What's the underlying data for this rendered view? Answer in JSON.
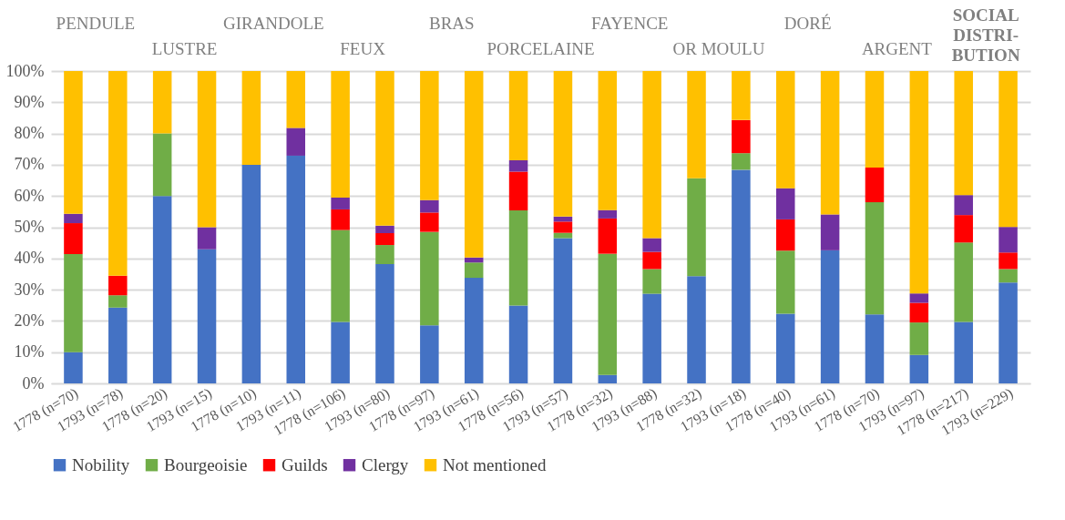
{
  "chart_data": {
    "type": "bar",
    "stacked": true,
    "categories": [
      "1778 (n=70)",
      "1793 (n=78)",
      "1778 (n=20)",
      "1793 (n=15)",
      "1778 (n=10)",
      "1793 (n=11)",
      "1778 (n=106)",
      "1793 (n=80)",
      "1778 (n=97)",
      "1793 (n=61)",
      "1778 (n=56)",
      "1793 (n=57)",
      "1778 (n=32)",
      "1793 (n=88)",
      "1778 (n=32)",
      "1793 (n=18)",
      "1778  (n=40)",
      "1793  (n=61)",
      "1778 (n=70)",
      "1793 (n=97)",
      "1778 (n=217)",
      "1793 (n=229)"
    ],
    "series": [
      {
        "name": "Nobility",
        "color": "#4472c4",
        "values": [
          10,
          24.3,
          60,
          42.9,
          70,
          72.9,
          19.7,
          38.2,
          18.6,
          33.8,
          24.9,
          46.5,
          2.7,
          28.7,
          34.3,
          68.4,
          22.3,
          42.6,
          22.1,
          9.1,
          19.7,
          32.3
        ]
      },
      {
        "name": "Bourgeoisie",
        "color": "#70ad47",
        "values": [
          31.4,
          3.9,
          20,
          0,
          0,
          0,
          29.4,
          6.1,
          29.9,
          4.9,
          30.5,
          1.7,
          38.8,
          7.9,
          31.4,
          5.3,
          20.2,
          0,
          35.9,
          10.4,
          25.4,
          4.3
        ]
      },
      {
        "name": "Guilds",
        "color": "#ff0000",
        "values": [
          9.9,
          6.3,
          0,
          0,
          0,
          0,
          6.6,
          3.8,
          6.2,
          0,
          12.4,
          3.6,
          11.3,
          5.5,
          0,
          10.6,
          10,
          0,
          11.1,
          6.3,
          8.8,
          5.3
        ]
      },
      {
        "name": "Clergy",
        "color": "#7030a0",
        "values": [
          3,
          0,
          0,
          7.1,
          0,
          8.9,
          3.8,
          2.4,
          4,
          1.6,
          3.6,
          1.6,
          2.7,
          4.4,
          0,
          0,
          10,
          11.5,
          0,
          3,
          6.4,
          8.2
        ]
      },
      {
        "name": "Not mentioned",
        "color": "#ffc000",
        "values": [
          45.7,
          65.5,
          20,
          50,
          30,
          18.2,
          40.5,
          49.5,
          41.3,
          59.7,
          28.6,
          46.6,
          44.5,
          53.5,
          34.3,
          15.7,
          37.5,
          45.9,
          30.9,
          71.2,
          39.7,
          49.9
        ]
      }
    ],
    "ylim": [
      0,
      100
    ],
    "yticks": [
      {
        "value": 0,
        "label": "0%"
      },
      {
        "value": 10,
        "label": "10%"
      },
      {
        "value": 20,
        "label": "20%"
      },
      {
        "value": 30,
        "label": "30%"
      },
      {
        "value": 40,
        "label": "40%"
      },
      {
        "value": 50,
        "label": "50%"
      },
      {
        "value": 60,
        "label": "60%"
      },
      {
        "value": 70,
        "label": "70%"
      },
      {
        "value": 80,
        "label": "80%"
      },
      {
        "value": 90,
        "label": "90%"
      },
      {
        "value": 100,
        "label": "100%"
      }
    ],
    "grid": "y",
    "legend": "bottom",
    "annotations": [
      "PENDULE",
      "LUSTRE",
      "GIRANDOLE",
      "FEUX",
      "BRAS",
      "PORCELAINE",
      "FAYENCE",
      "OR MOULU",
      "DORÉ",
      "ARGENT",
      "SOCIAL\nDISTRI-\nBUTION"
    ]
  }
}
